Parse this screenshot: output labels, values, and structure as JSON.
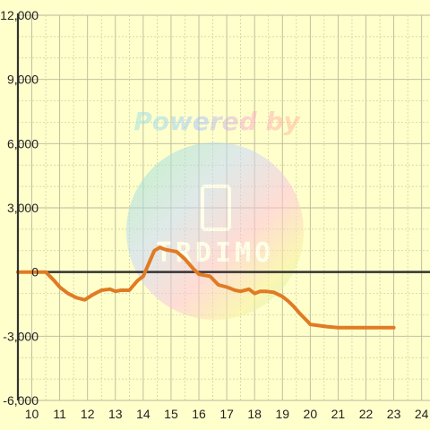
{
  "chart_data": {
    "type": "line",
    "title": "",
    "xlabel": "",
    "ylabel": "",
    "xlim": [
      9.5,
      24.3
    ],
    "ylim": [
      -6000,
      12000
    ],
    "x_ticks": [
      10,
      11,
      12,
      13,
      14,
      15,
      16,
      17,
      18,
      19,
      20,
      21,
      22,
      23,
      24
    ],
    "y_ticks": [
      12000,
      9000,
      6000,
      3000,
      0,
      -3000,
      -6000
    ],
    "y_tick_labels": [
      "12,000",
      "9,000",
      "6,000",
      "3,000",
      "0",
      "-3,000",
      "-6,000"
    ],
    "grid": true,
    "series": [
      {
        "color": "#e07b24",
        "x": [
          9.5,
          10.5,
          10.8,
          11.0,
          11.3,
          11.6,
          11.9,
          12.2,
          12.5,
          12.8,
          13.0,
          13.2,
          13.5,
          13.8,
          14.0,
          14.2,
          14.4,
          14.6,
          14.8,
          15.0,
          15.2,
          15.5,
          15.8,
          16.0,
          16.2,
          16.4,
          16.7,
          17.0,
          17.3,
          17.5,
          17.8,
          18.0,
          18.2,
          18.4,
          18.7,
          19.0,
          19.2,
          19.4,
          19.6,
          19.9,
          20.0,
          20.3,
          20.6,
          21.0,
          21.5,
          22.0,
          22.5,
          23.0
        ],
        "values": [
          0,
          0,
          -400,
          -700,
          -1000,
          -1200,
          -1300,
          -1050,
          -850,
          -800,
          -900,
          -850,
          -850,
          -400,
          -200,
          400,
          1000,
          1150,
          1050,
          1000,
          950,
          600,
          150,
          -100,
          -150,
          -200,
          -600,
          -700,
          -850,
          -900,
          -800,
          -1000,
          -900,
          -900,
          -950,
          -1150,
          -1350,
          -1600,
          -1900,
          -2300,
          -2450,
          -2500,
          -2550,
          -2600,
          -2600,
          -2600,
          -2600,
          -2600
        ]
      }
    ]
  },
  "watermark": {
    "text": "Powered by",
    "brand": "TRDIMO"
  }
}
